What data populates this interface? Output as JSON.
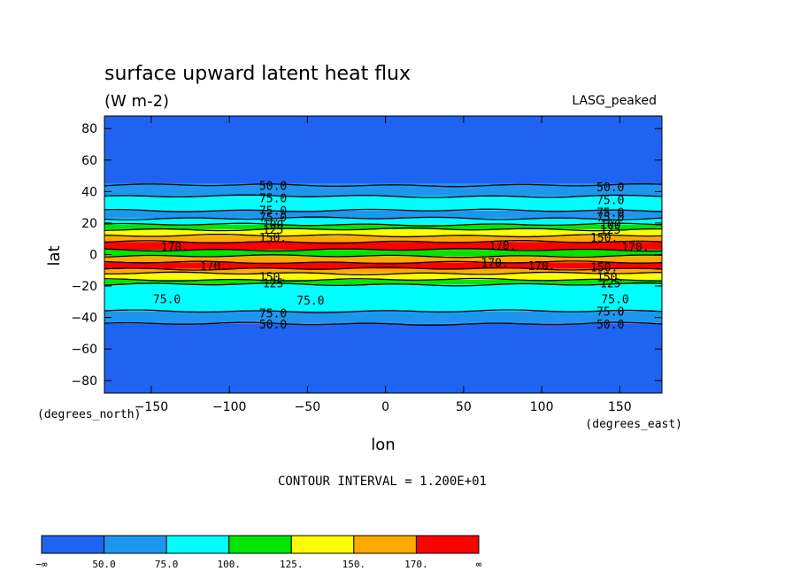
{
  "chart_data": {
    "type": "heatmap",
    "title": "surface upward latent heat flux",
    "subtitle": "(W m-2)",
    "dataset_label": "LASG_peaked",
    "xlabel": "lon",
    "ylabel": "lat",
    "x_units": "(degrees_east)",
    "y_units": "(degrees_north)",
    "xlim": [
      -180,
      177
    ],
    "ylim": [
      -88,
      88
    ],
    "x_ticks": [
      -150,
      -100,
      -50,
      0,
      50,
      100,
      150
    ],
    "y_ticks": [
      80,
      60,
      40,
      20,
      0,
      -20,
      -40,
      -60,
      -80
    ],
    "x_tick_labels": [
      "−150",
      "−100",
      "−50",
      "0",
      "50",
      "100",
      "150"
    ],
    "y_tick_labels": [
      "80",
      "60",
      "40",
      "20",
      "0",
      "−20",
      "−40",
      "−60",
      "−80"
    ],
    "contour_interval_text": "CONTOUR INTERVAL = 1.200E+01",
    "color_levels": [
      {
        "label": "−∞",
        "color": "#1e64f0"
      },
      {
        "label": "50.0",
        "color": "#1e96f0"
      },
      {
        "label": "75.0",
        "color": "#00ffff"
      },
      {
        "label": "100.",
        "color": "#00e600"
      },
      {
        "label": "125.",
        "color": "#ffff00"
      },
      {
        "label": "150.",
        "color": "#ffaa00"
      },
      {
        "label": "170.",
        "color": "#ff0000"
      },
      {
        "label": "∞",
        "color": null
      }
    ],
    "lat_bands": [
      {
        "from": 88,
        "to": 45,
        "color": "#1e64f0"
      },
      {
        "from": 45,
        "to": 37,
        "color": "#1e96f0"
      },
      {
        "from": 37,
        "to": 28,
        "color": "#00ffff"
      },
      {
        "from": 28,
        "to": 23,
        "color": "#1e96f0"
      },
      {
        "from": 23,
        "to": 19,
        "color": "#00ffff"
      },
      {
        "from": 19,
        "to": 16,
        "color": "#00e600"
      },
      {
        "from": 16,
        "to": 12,
        "color": "#ffff00"
      },
      {
        "from": 12,
        "to": 8,
        "color": "#ffaa00"
      },
      {
        "from": 8,
        "to": 3,
        "color": "#ff0000"
      },
      {
        "from": 3,
        "to": -1,
        "color": "#00e600"
      },
      {
        "from": -1,
        "to": -5,
        "color": "#ffaa00"
      },
      {
        "from": -5,
        "to": -9,
        "color": "#ff0000"
      },
      {
        "from": -9,
        "to": -12,
        "color": "#ffaa00"
      },
      {
        "from": -12,
        "to": -16,
        "color": "#ffff00"
      },
      {
        "from": -16,
        "to": -19,
        "color": "#00e600"
      },
      {
        "from": -19,
        "to": -36,
        "color": "#00ffff"
      },
      {
        "from": -36,
        "to": -44,
        "color": "#1e96f0"
      },
      {
        "from": -44,
        "to": -88,
        "color": "#1e64f0"
      }
    ],
    "contour_lats": [
      44,
      37,
      28,
      23,
      19,
      16,
      12,
      8,
      3,
      -1,
      -5,
      -9,
      -12,
      -16,
      -19,
      -36,
      -44
    ],
    "contour_labels": [
      {
        "text": "50.0",
        "lon": -72,
        "lat": 44
      },
      {
        "text": "75.0",
        "lon": -72,
        "lat": 36
      },
      {
        "text": "75.0",
        "lon": -72,
        "lat": 28
      },
      {
        "text": "75.0",
        "lon": -72,
        "lat": 24
      },
      {
        "text": "100",
        "lon": -72,
        "lat": 19
      },
      {
        "text": "125",
        "lon": -72,
        "lat": 16
      },
      {
        "text": "150.",
        "lon": -72,
        "lat": 11
      },
      {
        "text": "170.",
        "lon": -135,
        "lat": 5
      },
      {
        "text": "170.",
        "lon": -110,
        "lat": -7
      },
      {
        "text": "150.",
        "lon": -72,
        "lat": -14
      },
      {
        "text": "125",
        "lon": -72,
        "lat": -18
      },
      {
        "text": "75.0",
        "lon": -140,
        "lat": -28
      },
      {
        "text": "75.0",
        "lon": -48,
        "lat": -29
      },
      {
        "text": "75.0",
        "lon": -72,
        "lat": -37
      },
      {
        "text": "50.0",
        "lon": -72,
        "lat": -44
      },
      {
        "text": "170.",
        "lon": 75,
        "lat": 6
      },
      {
        "text": "170.",
        "lon": 70,
        "lat": -5
      },
      {
        "text": "170.",
        "lon": 100,
        "lat": -7
      },
      {
        "text": "50.0",
        "lon": 144,
        "lat": 43
      },
      {
        "text": "75.0",
        "lon": 144,
        "lat": 35
      },
      {
        "text": "75.0",
        "lon": 144,
        "lat": 27
      },
      {
        "text": "75.0",
        "lon": 144,
        "lat": 24
      },
      {
        "text": "100",
        "lon": 144,
        "lat": 19
      },
      {
        "text": "125",
        "lon": 144,
        "lat": 16
      },
      {
        "text": "150.",
        "lon": 140,
        "lat": 11
      },
      {
        "text": "170.",
        "lon": 160,
        "lat": 5
      },
      {
        "text": "150.",
        "lon": 140,
        "lat": -8
      },
      {
        "text": "150.",
        "lon": 144,
        "lat": -14
      },
      {
        "text": "125",
        "lon": 144,
        "lat": -18
      },
      {
        "text": "75.0",
        "lon": 147,
        "lat": -28
      },
      {
        "text": "75.0",
        "lon": 144,
        "lat": -36
      },
      {
        "text": "50.0",
        "lon": 144,
        "lat": -44
      }
    ]
  }
}
